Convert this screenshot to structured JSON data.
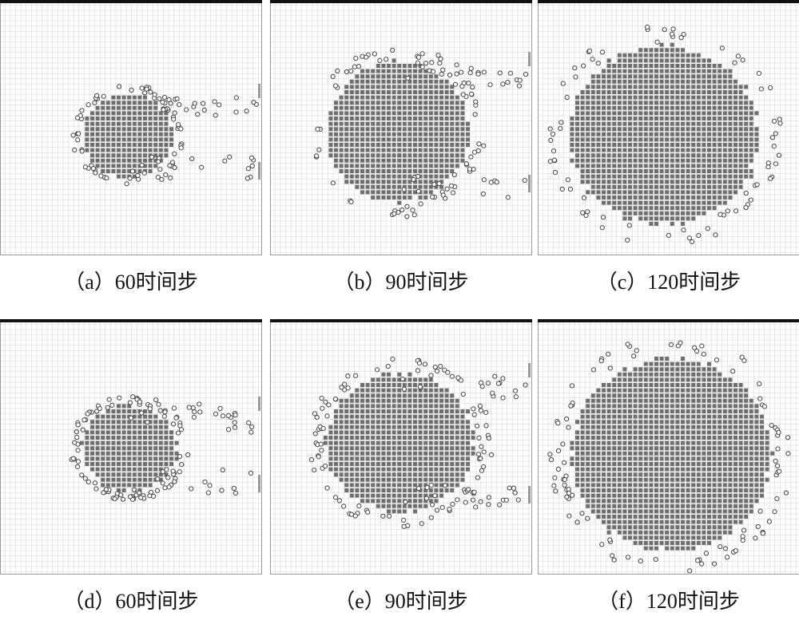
{
  "panels": [
    {
      "caption": "（a）60时间步"
    },
    {
      "caption": "（b）90时间步"
    },
    {
      "caption": "（c）120时间步"
    },
    {
      "caption": "（d）60时间步"
    },
    {
      "caption": "（e）90时间步"
    },
    {
      "caption": "（f）120时间步"
    }
  ]
}
